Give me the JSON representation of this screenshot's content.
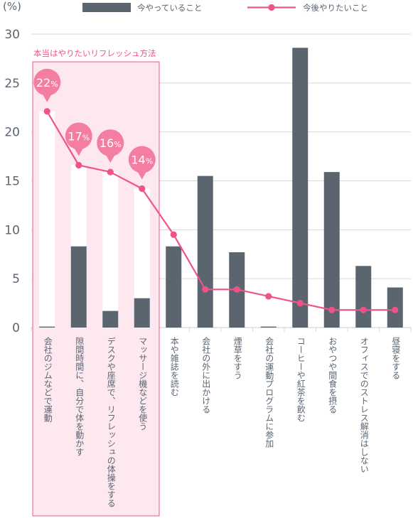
{
  "chart_data": {
    "type": "bar",
    "unit_label": "(%)",
    "legend": {
      "placement": "top",
      "bar_label": "今やっていること",
      "line_label": "今後やりたいこと"
    },
    "highlight": {
      "label": "本当はやりたいリフレッシュ方法",
      "category_count": 4
    },
    "categories": [
      "会社のジムなどで運動",
      "隙間時間に、自分で体を動かす",
      "デスクや座席で、リフレッシュの体操をする",
      "マッサージ機などを使う",
      "本や雑誌を読む",
      "会社の外に出かける",
      "煙草をすう",
      "会社の運動プログラムに参加",
      "コーヒーや紅茶を飲む",
      "おやつや間食を摂る",
      "オフィスでのストレス解消はしない",
      "昼寝をする"
    ],
    "series": [
      {
        "name": "今やっていること",
        "type": "bar",
        "values": [
          0.1,
          8.3,
          1.7,
          3.0,
          8.3,
          15.5,
          7.7,
          0.1,
          28.6,
          15.9,
          6.3,
          4.1
        ]
      },
      {
        "name": "今後やりたいこと",
        "type": "line",
        "values": [
          22.1,
          16.6,
          15.9,
          14.2,
          9.5,
          3.9,
          3.9,
          3.2,
          2.5,
          1.8,
          1.8,
          1.8
        ]
      }
    ],
    "callouts": [
      {
        "index": 0,
        "label": "22%"
      },
      {
        "index": 1,
        "label": "17%"
      },
      {
        "index": 2,
        "label": "16%"
      },
      {
        "index": 3,
        "label": "14%"
      }
    ],
    "yticks": [
      "0",
      "5",
      "10",
      "15",
      "20",
      "25",
      "30"
    ],
    "ylim": [
      0,
      30
    ],
    "grid": true,
    "colors": {
      "bar": "#5a6570",
      "line": "#ef5486",
      "highlight_fill": "#fde8ef",
      "highlight_border": "#ef5486",
      "callout": "#f47ea2",
      "ghost_bar": "#ffffff",
      "grid": "#d8d8d8"
    }
  }
}
